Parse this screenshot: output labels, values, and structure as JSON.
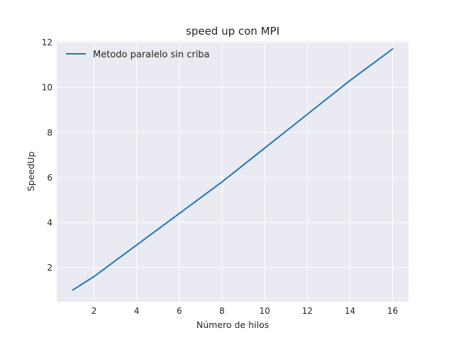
{
  "chart_data": {
    "type": "line",
    "title": "speed up con MPI",
    "xlabel": "Número de hilos",
    "ylabel": "SpeedUp",
    "xlim": [
      0.25,
      16.75
    ],
    "ylim": [
      0.48,
      12.05
    ],
    "x_ticks": [
      2,
      4,
      6,
      8,
      10,
      12,
      14,
      16
    ],
    "y_ticks": [
      2,
      4,
      6,
      8,
      10,
      12
    ],
    "grid": true,
    "legend_position": "upper-left",
    "series": [
      {
        "name": "Metodo paralelo sin criba",
        "color": "#1f77b4",
        "x": [
          1,
          2,
          3,
          4,
          5,
          6,
          7,
          8,
          9,
          10,
          11,
          12,
          13,
          14,
          15,
          16
        ],
        "y": [
          1.0,
          1.6,
          2.3,
          3.0,
          3.7,
          4.4,
          5.1,
          5.8,
          6.55,
          7.3,
          8.05,
          8.8,
          9.55,
          10.3,
          11.0,
          11.7
        ]
      }
    ]
  }
}
